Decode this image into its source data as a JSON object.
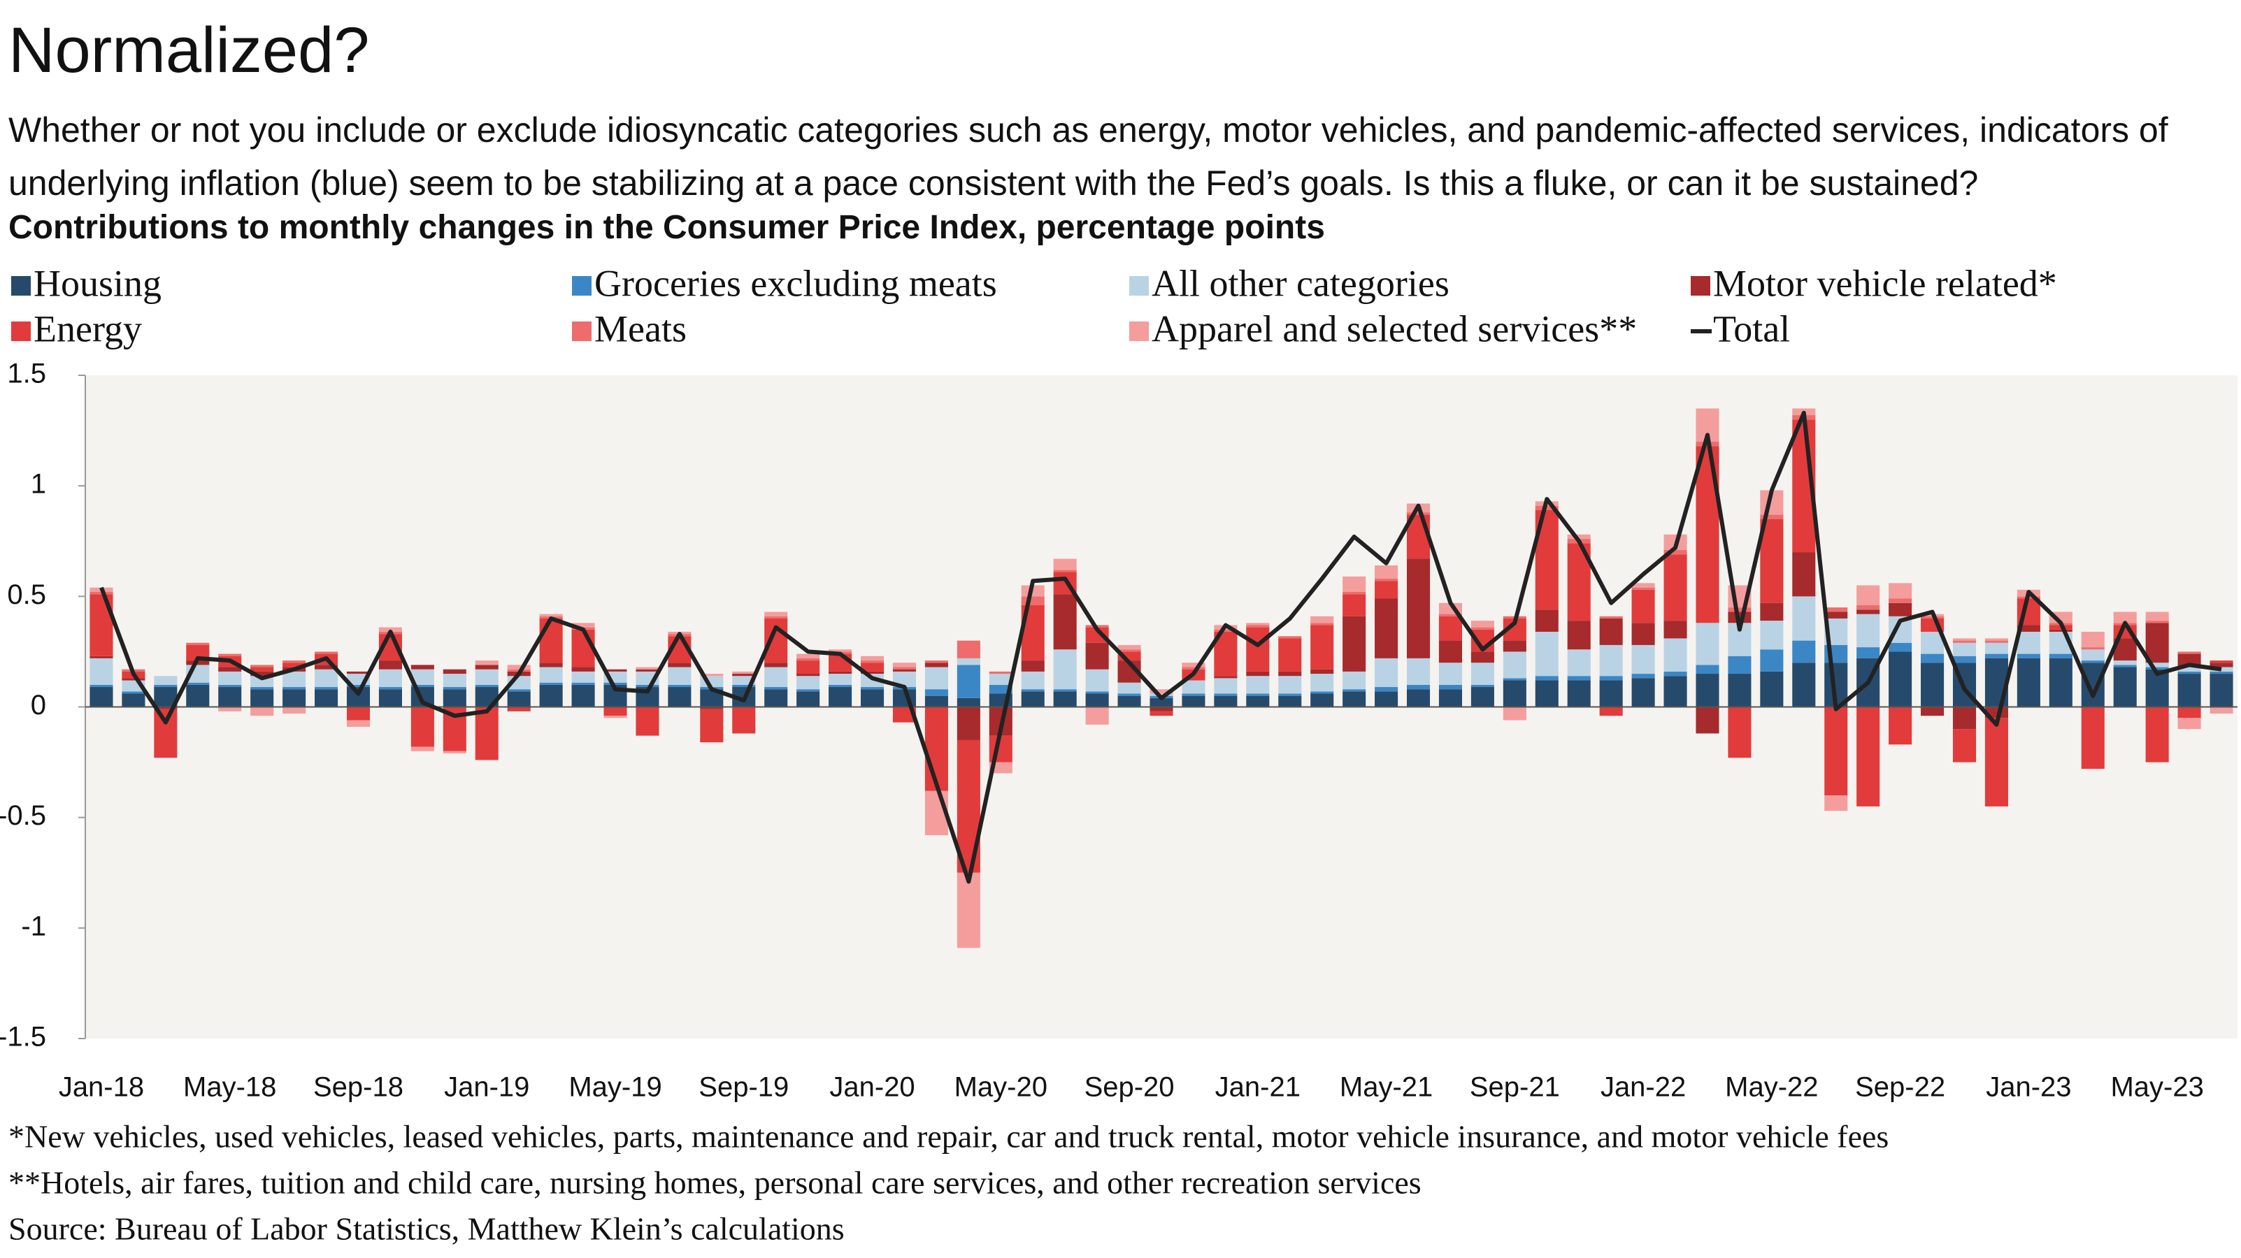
{
  "chart_data": {
    "type": "bar",
    "stacked": true,
    "title": "Normalized?",
    "subtitle": "Whether or not you include or exclude idiosyncatic categories such as energy, motor vehicles, and pandemic-affected services, indicators of underlying inflation (blue) seem to be stabilizing at a pace consistent with the Fed’s goals. Is this a fluke, or can it be sustained?",
    "ylabel": "Contributions to monthly changes in the Consumer Price Index, percentage points",
    "notes": [
      "*New vehicles, used vehicles, leased vehicles, parts, maintenance and repair, car and truck rental, motor vehicle insurance, and motor vehicle fees",
      "**Hotels, air fares, tuition and child care, nursing homes, personal care services, and other recreation services",
      "Source: Bureau of Labor Statistics, Matthew Klein’s calculations"
    ],
    "categories": [
      "Jan-18",
      null,
      null,
      null,
      "May-18",
      null,
      null,
      null,
      "Sep-18",
      null,
      null,
      null,
      "Jan-19",
      null,
      null,
      null,
      "May-19",
      null,
      null,
      null,
      "Sep-19",
      null,
      null,
      null,
      "Jan-20",
      null,
      null,
      null,
      "May-20",
      null,
      null,
      null,
      "Sep-20",
      null,
      null,
      null,
      "Jan-21",
      null,
      null,
      null,
      "May-21",
      null,
      null,
      null,
      "Sep-21",
      null,
      null,
      null,
      "Jan-22",
      null,
      null,
      null,
      "May-22",
      null,
      null,
      null,
      "Sep-22",
      null,
      null,
      null,
      "Jan-23",
      null,
      null,
      null,
      "May-23",
      null,
      null
    ],
    "ylim": [
      -1.5,
      1.5
    ],
    "yticks": [
      1.5,
      1,
      0.5,
      0,
      -0.5,
      -1,
      -1.5
    ],
    "grid": false,
    "series": [
      {
        "name": "Housing",
        "color": "#264a6b",
        "values": [
          0.09,
          0.06,
          0.09,
          0.1,
          0.09,
          0.08,
          0.08,
          0.08,
          0.09,
          0.08,
          0.09,
          0.08,
          0.09,
          0.07,
          0.1,
          0.1,
          0.1,
          0.09,
          0.09,
          0.08,
          0.09,
          0.08,
          0.07,
          0.09,
          0.08,
          0.08,
          0.05,
          0.04,
          0.06,
          0.07,
          0.07,
          0.06,
          0.05,
          0.04,
          0.05,
          0.05,
          0.05,
          0.05,
          0.06,
          0.07,
          0.07,
          0.08,
          0.08,
          0.09,
          0.12,
          0.12,
          0.12,
          0.12,
          0.13,
          0.14,
          0.15,
          0.15,
          0.16,
          0.2,
          0.2,
          0.22,
          0.25,
          0.2,
          0.2,
          0.22,
          0.22,
          0.22,
          0.2,
          0.18,
          0.17,
          0.15,
          0.15
        ]
      },
      {
        "name": "Groceries excluding meats",
        "color": "#3b87c6",
        "values": [
          0.01,
          0.01,
          0.01,
          0.01,
          0.01,
          0.01,
          0.01,
          0.01,
          0.01,
          0.01,
          0.01,
          0.01,
          0.01,
          0.01,
          0.01,
          0.01,
          0.01,
          0.01,
          0.01,
          0.01,
          0.01,
          0.01,
          0.01,
          0.01,
          0.01,
          0.01,
          0.03,
          0.15,
          0.04,
          0.01,
          0.01,
          0.01,
          0.01,
          0.01,
          0.01,
          0.01,
          0.01,
          0.01,
          0.01,
          0.01,
          0.02,
          0.02,
          0.02,
          0.01,
          0.01,
          0.02,
          0.02,
          0.02,
          0.02,
          0.02,
          0.04,
          0.08,
          0.1,
          0.1,
          0.08,
          0.05,
          0.04,
          0.04,
          0.03,
          0.02,
          0.02,
          0.02,
          0.01,
          0.01,
          0.01,
          0.01,
          0.01
        ]
      },
      {
        "name": "All other categories",
        "color": "#b9d3e4",
        "values": [
          0.12,
          0.05,
          0.04,
          0.08,
          0.06,
          0.05,
          0.07,
          0.08,
          0.05,
          0.08,
          0.07,
          0.06,
          0.07,
          0.06,
          0.07,
          0.05,
          0.05,
          0.06,
          0.08,
          0.05,
          0.04,
          0.09,
          0.06,
          0.05,
          0.06,
          0.07,
          0.1,
          0.03,
          0.05,
          0.08,
          0.18,
          0.1,
          0.05,
          0.01,
          0.06,
          0.07,
          0.08,
          0.08,
          0.08,
          0.08,
          0.13,
          0.12,
          0.1,
          0.1,
          0.12,
          0.2,
          0.12,
          0.14,
          0.13,
          0.15,
          0.19,
          0.15,
          0.13,
          0.2,
          0.12,
          0.15,
          0.12,
          0.1,
          0.06,
          0.05,
          0.1,
          0.1,
          0.05,
          0.02,
          0.02,
          0.02,
          0.02
        ]
      },
      {
        "name": "Motor vehicle related*",
        "color": "#a72a2c",
        "values": [
          0.01,
          0.01,
          -0.01,
          0.02,
          0.02,
          0.02,
          0.02,
          0.02,
          0.01,
          0.04,
          0.02,
          0.02,
          0.02,
          0.02,
          0.02,
          0.02,
          0.01,
          0.01,
          0.02,
          -0.01,
          0.01,
          0.02,
          0.01,
          0.01,
          0.01,
          0.01,
          0.02,
          -0.15,
          -0.13,
          0.05,
          0.25,
          0.12,
          0.1,
          -0.02,
          0,
          0.01,
          0.02,
          0.02,
          0.02,
          0.25,
          0.27,
          0.45,
          0.1,
          0.05,
          0.05,
          0.1,
          0.13,
          0.12,
          0.1,
          0.08,
          -0.12,
          0.05,
          0.08,
          0.2,
          0.03,
          0.02,
          0.06,
          -0.04,
          -0.1,
          -0.05,
          0.03,
          0.01,
          0,
          0.1,
          0.18,
          0.06,
          0.02
        ]
      },
      {
        "name": "Energy",
        "color": "#e23b3b",
        "values": [
          0.28,
          0.03,
          -0.22,
          0.07,
          0.05,
          0.02,
          0.02,
          0.05,
          -0.06,
          0.12,
          -0.18,
          -0.2,
          -0.24,
          -0.02,
          0.2,
          0.17,
          -0.04,
          -0.13,
          0.12,
          -0.15,
          -0.12,
          0.2,
          0.06,
          0.08,
          0.04,
          -0.07,
          -0.38,
          -0.6,
          -0.12,
          0.25,
          0.1,
          0.07,
          0.04,
          -0.02,
          0.05,
          0.2,
          0.2,
          0.15,
          0.2,
          0.1,
          0.08,
          0.2,
          0.11,
          0.1,
          0.1,
          0.45,
          0.35,
          -0.04,
          0.15,
          0.3,
          0.8,
          -0.23,
          0.38,
          0.6,
          -0.4,
          -0.45,
          -0.17,
          0.06,
          -0.15,
          -0.4,
          0.12,
          0.02,
          -0.28,
          0.06,
          -0.25,
          -0.05,
          0.01
        ]
      },
      {
        "name": "Meats",
        "color": "#ee6c6c",
        "values": [
          0.01,
          0.01,
          0,
          0.01,
          0.01,
          0.01,
          0.01,
          0.01,
          0,
          0.01,
          0,
          0,
          0,
          0.01,
          0.01,
          0.01,
          0,
          0,
          0.01,
          0,
          0,
          0.01,
          0.01,
          0.01,
          0.01,
          0.01,
          0.01,
          0.08,
          0.01,
          0.04,
          0.01,
          0.01,
          0.01,
          0,
          0.01,
          0.01,
          0.01,
          0.01,
          0.01,
          0.01,
          0.01,
          0.01,
          0.01,
          0.01,
          0.01,
          0.02,
          0.02,
          0.01,
          0.01,
          0.02,
          0.02,
          0.02,
          0.02,
          0.02,
          0.02,
          0.02,
          0.02,
          0.01,
          0.01,
          0.01,
          0.01,
          0.01,
          0.01,
          0.01,
          0.01,
          0.01,
          0
        ]
      },
      {
        "name": "Apparel and selected services**",
        "color": "#f49d9d",
        "values": [
          0.02,
          0,
          0,
          0,
          -0.02,
          -0.04,
          -0.03,
          0,
          -0.03,
          0.02,
          -0.02,
          -0.01,
          0.02,
          0.02,
          0.01,
          0.02,
          -0.01,
          0.01,
          0.01,
          0.01,
          0.01,
          0.02,
          0.02,
          0.01,
          0.02,
          0.02,
          -0.2,
          -0.34,
          -0.05,
          0.05,
          0.05,
          -0.08,
          0.02,
          0.02,
          0.02,
          0.02,
          0.01,
          0,
          0.03,
          0.07,
          0.06,
          0.04,
          0.05,
          0.03,
          -0.06,
          0.02,
          0.02,
          0,
          0.02,
          0.07,
          0.15,
          0.1,
          0.11,
          0.03,
          -0.07,
          0.09,
          0.07,
          0.01,
          0.01,
          0.01,
          0.03,
          0.05,
          0.07,
          0.05,
          0.04,
          -0.05,
          -0.03
        ]
      },
      {
        "name": "Total",
        "type": "line",
        "color": "#222222",
        "values": [
          0.54,
          0.15,
          -0.07,
          0.22,
          0.21,
          0.13,
          0.17,
          0.22,
          0.06,
          0.34,
          0.02,
          -0.04,
          -0.02,
          0.15,
          0.4,
          0.35,
          0.08,
          0.07,
          0.33,
          0.08,
          0.03,
          0.36,
          0.25,
          0.24,
          0.13,
          0.09,
          -0.35,
          -0.79,
          -0.1,
          0.57,
          0.58,
          0.35,
          0.2,
          0.04,
          0.15,
          0.37,
          0.28,
          0.4,
          0.58,
          0.77,
          0.65,
          0.91,
          0.47,
          0.26,
          0.38,
          0.94,
          0.75,
          0.47,
          0.6,
          0.72,
          1.23,
          0.35,
          0.98,
          1.33,
          -0.01,
          0.11,
          0.39,
          0.43,
          0.08,
          -0.08,
          0.52,
          0.38,
          0.05,
          0.38,
          0.15,
          0.19,
          0.17
        ]
      }
    ]
  }
}
